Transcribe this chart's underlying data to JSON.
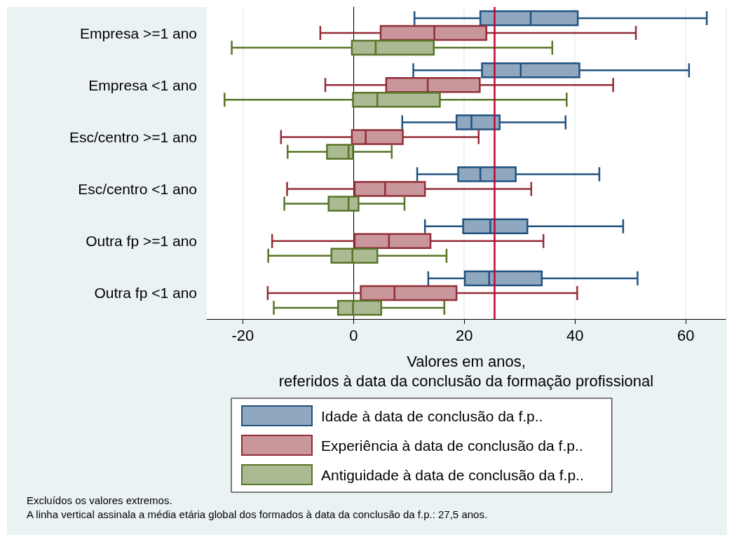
{
  "chart_data": {
    "type": "box",
    "orientation": "horizontal",
    "xlabel": "Valores em anos,\nreferidos à data da conclusão da formação profissional",
    "categories": [
      "Empresa >=1 ano",
      "Empresa <1 ano",
      "Esc/centro >=1 ano",
      "Esc/centro <1 ano",
      "Outra fp >=1 ano",
      "Outra fp <1 ano"
    ],
    "series": [
      {
        "name": "Idade à data de conclusão da f.p..",
        "color": "#90a8bf",
        "boxes": [
          {
            "low": 11.0,
            "q1": 22.9,
            "median": 32.0,
            "q3": 40.5,
            "high": 63.8
          },
          {
            "low": 10.8,
            "q1": 23.2,
            "median": 30.2,
            "q3": 40.8,
            "high": 60.6
          },
          {
            "low": 8.8,
            "q1": 18.6,
            "median": 21.3,
            "q3": 26.4,
            "high": 38.3
          },
          {
            "low": 11.5,
            "q1": 18.9,
            "median": 22.9,
            "q3": 29.3,
            "high": 44.4
          },
          {
            "low": 12.9,
            "q1": 19.8,
            "median": 24.7,
            "q3": 31.4,
            "high": 48.7
          },
          {
            "low": 13.5,
            "q1": 20.1,
            "median": 24.5,
            "q3": 34.0,
            "high": 51.3
          }
        ]
      },
      {
        "name": "Experiência à data de conclusão da f.p..",
        "color": "#c9969b",
        "boxes": [
          {
            "low": -6.0,
            "q1": 4.9,
            "median": 14.6,
            "q3": 24.0,
            "high": 51.0
          },
          {
            "low": -5.1,
            "q1": 5.9,
            "median": 13.4,
            "q3": 22.8,
            "high": 46.9
          },
          {
            "low": -13.1,
            "q1": -0.3,
            "median": 2.2,
            "q3": 8.9,
            "high": 22.6
          },
          {
            "low": -12.0,
            "q1": 0.2,
            "median": 5.7,
            "q3": 12.9,
            "high": 32.1
          },
          {
            "low": -14.7,
            "q1": 0.2,
            "median": 6.4,
            "q3": 13.9,
            "high": 34.3
          },
          {
            "low": -15.5,
            "q1": 1.3,
            "median": 7.4,
            "q3": 18.6,
            "high": 40.4
          }
        ]
      },
      {
        "name": "Antiguidade à data de conclusão da f.p..",
        "color": "#abba93",
        "boxes": [
          {
            "low": -22.0,
            "q1": -0.3,
            "median": 4.0,
            "q3": 14.5,
            "high": 35.9
          },
          {
            "low": -23.3,
            "q1": -0.1,
            "median": 4.3,
            "q3": 15.6,
            "high": 38.5
          },
          {
            "low": -11.9,
            "q1": -4.8,
            "median": -0.9,
            "q3": -0.1,
            "high": 6.9
          },
          {
            "low": -12.5,
            "q1": -4.5,
            "median": -0.9,
            "q3": 0.9,
            "high": 9.2
          },
          {
            "low": -15.4,
            "q1": -4.0,
            "median": -0.2,
            "q3": 4.3,
            "high": 16.8
          },
          {
            "low": -14.4,
            "q1": -2.8,
            "median": -0.1,
            "q3": 5.0,
            "high": 16.4
          }
        ]
      }
    ],
    "xlim": [
      -26.5,
      67.2
    ],
    "xticks": [
      -20,
      0,
      20,
      40,
      60
    ],
    "ref_lines": [
      {
        "axis": "x",
        "value": 25.4,
        "color": "#c10534"
      }
    ],
    "grid": "x",
    "legend": "bottom",
    "annotations": [
      "Excluídos os valores extremos.",
      "A linha vertical assinala a média etária global dos formados à data da conclusão da f.p.: 27,5 anos."
    ]
  }
}
